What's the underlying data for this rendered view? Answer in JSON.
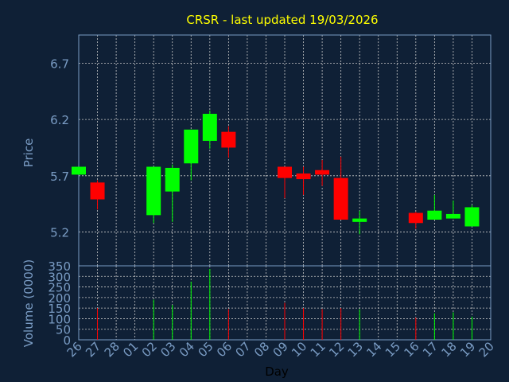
{
  "colors": {
    "background": "#0f2036",
    "title": "#ffff00",
    "axis_text": "#7a9cc4",
    "grid": "#c8c8c8",
    "plot_border": "#7a9cc4",
    "up": "#00ff00",
    "down": "#ff0000"
  },
  "chart_data": [
    {
      "type": "candlestick",
      "title": "CRSR - last updated 19/03/2026",
      "ylabel": "Price",
      "ylim": [
        4.9,
        6.95
      ],
      "yticks": [
        5.2,
        5.7,
        6.2,
        6.7
      ],
      "ytick_labels": [
        "5.2",
        "5.7",
        "6.2",
        "6.7"
      ],
      "grid": true,
      "categories": [
        "26",
        "27",
        "28",
        "01",
        "02",
        "03",
        "04",
        "05",
        "06",
        "07",
        "08",
        "09",
        "10",
        "11",
        "12",
        "13",
        "14",
        "15",
        "16",
        "17",
        "18",
        "19",
        "20"
      ],
      "candles": [
        {
          "day": "26",
          "open": 5.71,
          "close": 5.78,
          "high": 5.78,
          "low": 5.71
        },
        {
          "day": "27",
          "open": 5.64,
          "close": 5.49,
          "high": 5.66,
          "low": 5.4
        },
        {
          "day": "02",
          "open": 5.35,
          "close": 5.78,
          "high": 5.78,
          "low": 5.28
        },
        {
          "day": "03",
          "open": 5.56,
          "close": 5.77,
          "high": 5.8,
          "low": 5.29
        },
        {
          "day": "04",
          "open": 5.81,
          "close": 6.11,
          "high": 6.11,
          "low": 5.66
        },
        {
          "day": "05",
          "open": 6.01,
          "close": 6.25,
          "high": 6.28,
          "low": 5.94
        },
        {
          "day": "06",
          "open": 6.09,
          "close": 5.95,
          "high": 6.14,
          "low": 5.86
        },
        {
          "day": "09",
          "open": 5.78,
          "close": 5.68,
          "high": 5.78,
          "low": 5.5
        },
        {
          "day": "10",
          "open": 5.72,
          "close": 5.67,
          "high": 5.78,
          "low": 5.53
        },
        {
          "day": "11",
          "open": 5.75,
          "close": 5.71,
          "high": 5.84,
          "low": 5.61
        },
        {
          "day": "12",
          "open": 5.68,
          "close": 5.31,
          "high": 5.87,
          "low": 5.31
        },
        {
          "day": "13",
          "open": 5.29,
          "close": 5.32,
          "high": 5.39,
          "low": 5.18
        },
        {
          "day": "16",
          "open": 5.37,
          "close": 5.28,
          "high": 5.38,
          "low": 5.23
        },
        {
          "day": "17",
          "open": 5.31,
          "close": 5.39,
          "high": 5.53,
          "low": 5.31
        },
        {
          "day": "18",
          "open": 5.32,
          "close": 5.36,
          "high": 5.48,
          "low": 5.32
        },
        {
          "day": "19",
          "open": 5.25,
          "close": 5.42,
          "high": 5.44,
          "low": 5.25
        }
      ]
    },
    {
      "type": "bar",
      "ylabel": "Volume (0000)",
      "xlabel": "Day",
      "ylim": [
        0,
        350
      ],
      "yticks": [
        0,
        50,
        100,
        150,
        200,
        250,
        300,
        350
      ],
      "ytick_labels": [
        "0",
        "50",
        "100",
        "150",
        "200",
        "250",
        "300",
        "350"
      ],
      "grid": true,
      "categories": [
        "26",
        "27",
        "28",
        "01",
        "02",
        "03",
        "04",
        "05",
        "06",
        "07",
        "08",
        "09",
        "10",
        "11",
        "12",
        "13",
        "14",
        "15",
        "16",
        "17",
        "18",
        "19",
        "20"
      ],
      "bars": [
        {
          "day": "26",
          "value": 0,
          "direction": "up"
        },
        {
          "day": "27",
          "value": 150,
          "direction": "down"
        },
        {
          "day": "02",
          "value": 190,
          "direction": "up"
        },
        {
          "day": "03",
          "value": 165,
          "direction": "up"
        },
        {
          "day": "04",
          "value": 275,
          "direction": "up"
        },
        {
          "day": "05",
          "value": 335,
          "direction": "up"
        },
        {
          "day": "06",
          "value": 145,
          "direction": "down"
        },
        {
          "day": "09",
          "value": 175,
          "direction": "down"
        },
        {
          "day": "10",
          "value": 150,
          "direction": "down"
        },
        {
          "day": "11",
          "value": 145,
          "direction": "down"
        },
        {
          "day": "12",
          "value": 150,
          "direction": "down"
        },
        {
          "day": "13",
          "value": 145,
          "direction": "up"
        },
        {
          "day": "16",
          "value": 105,
          "direction": "down"
        },
        {
          "day": "17",
          "value": 125,
          "direction": "up"
        },
        {
          "day": "18",
          "value": 130,
          "direction": "up"
        },
        {
          "day": "19",
          "value": 110,
          "direction": "up"
        }
      ]
    }
  ]
}
